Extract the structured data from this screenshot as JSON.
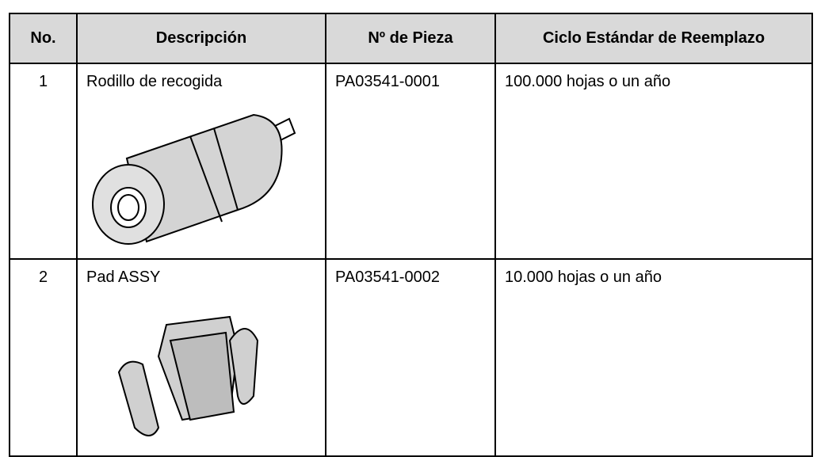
{
  "table": {
    "header": [
      "No.",
      "Descripción",
      "Nº de Pieza",
      "Ciclo Estándar de Reemplazo"
    ],
    "rows": [
      [
        "1",
        "Rodillo de recogida",
        "PA03541-0001",
        "100.000 hojas o un año"
      ],
      [
        "2",
        "Pad ASSY",
        "PA03541-0002",
        "10.000 hojas o un año"
      ]
    ]
  }
}
